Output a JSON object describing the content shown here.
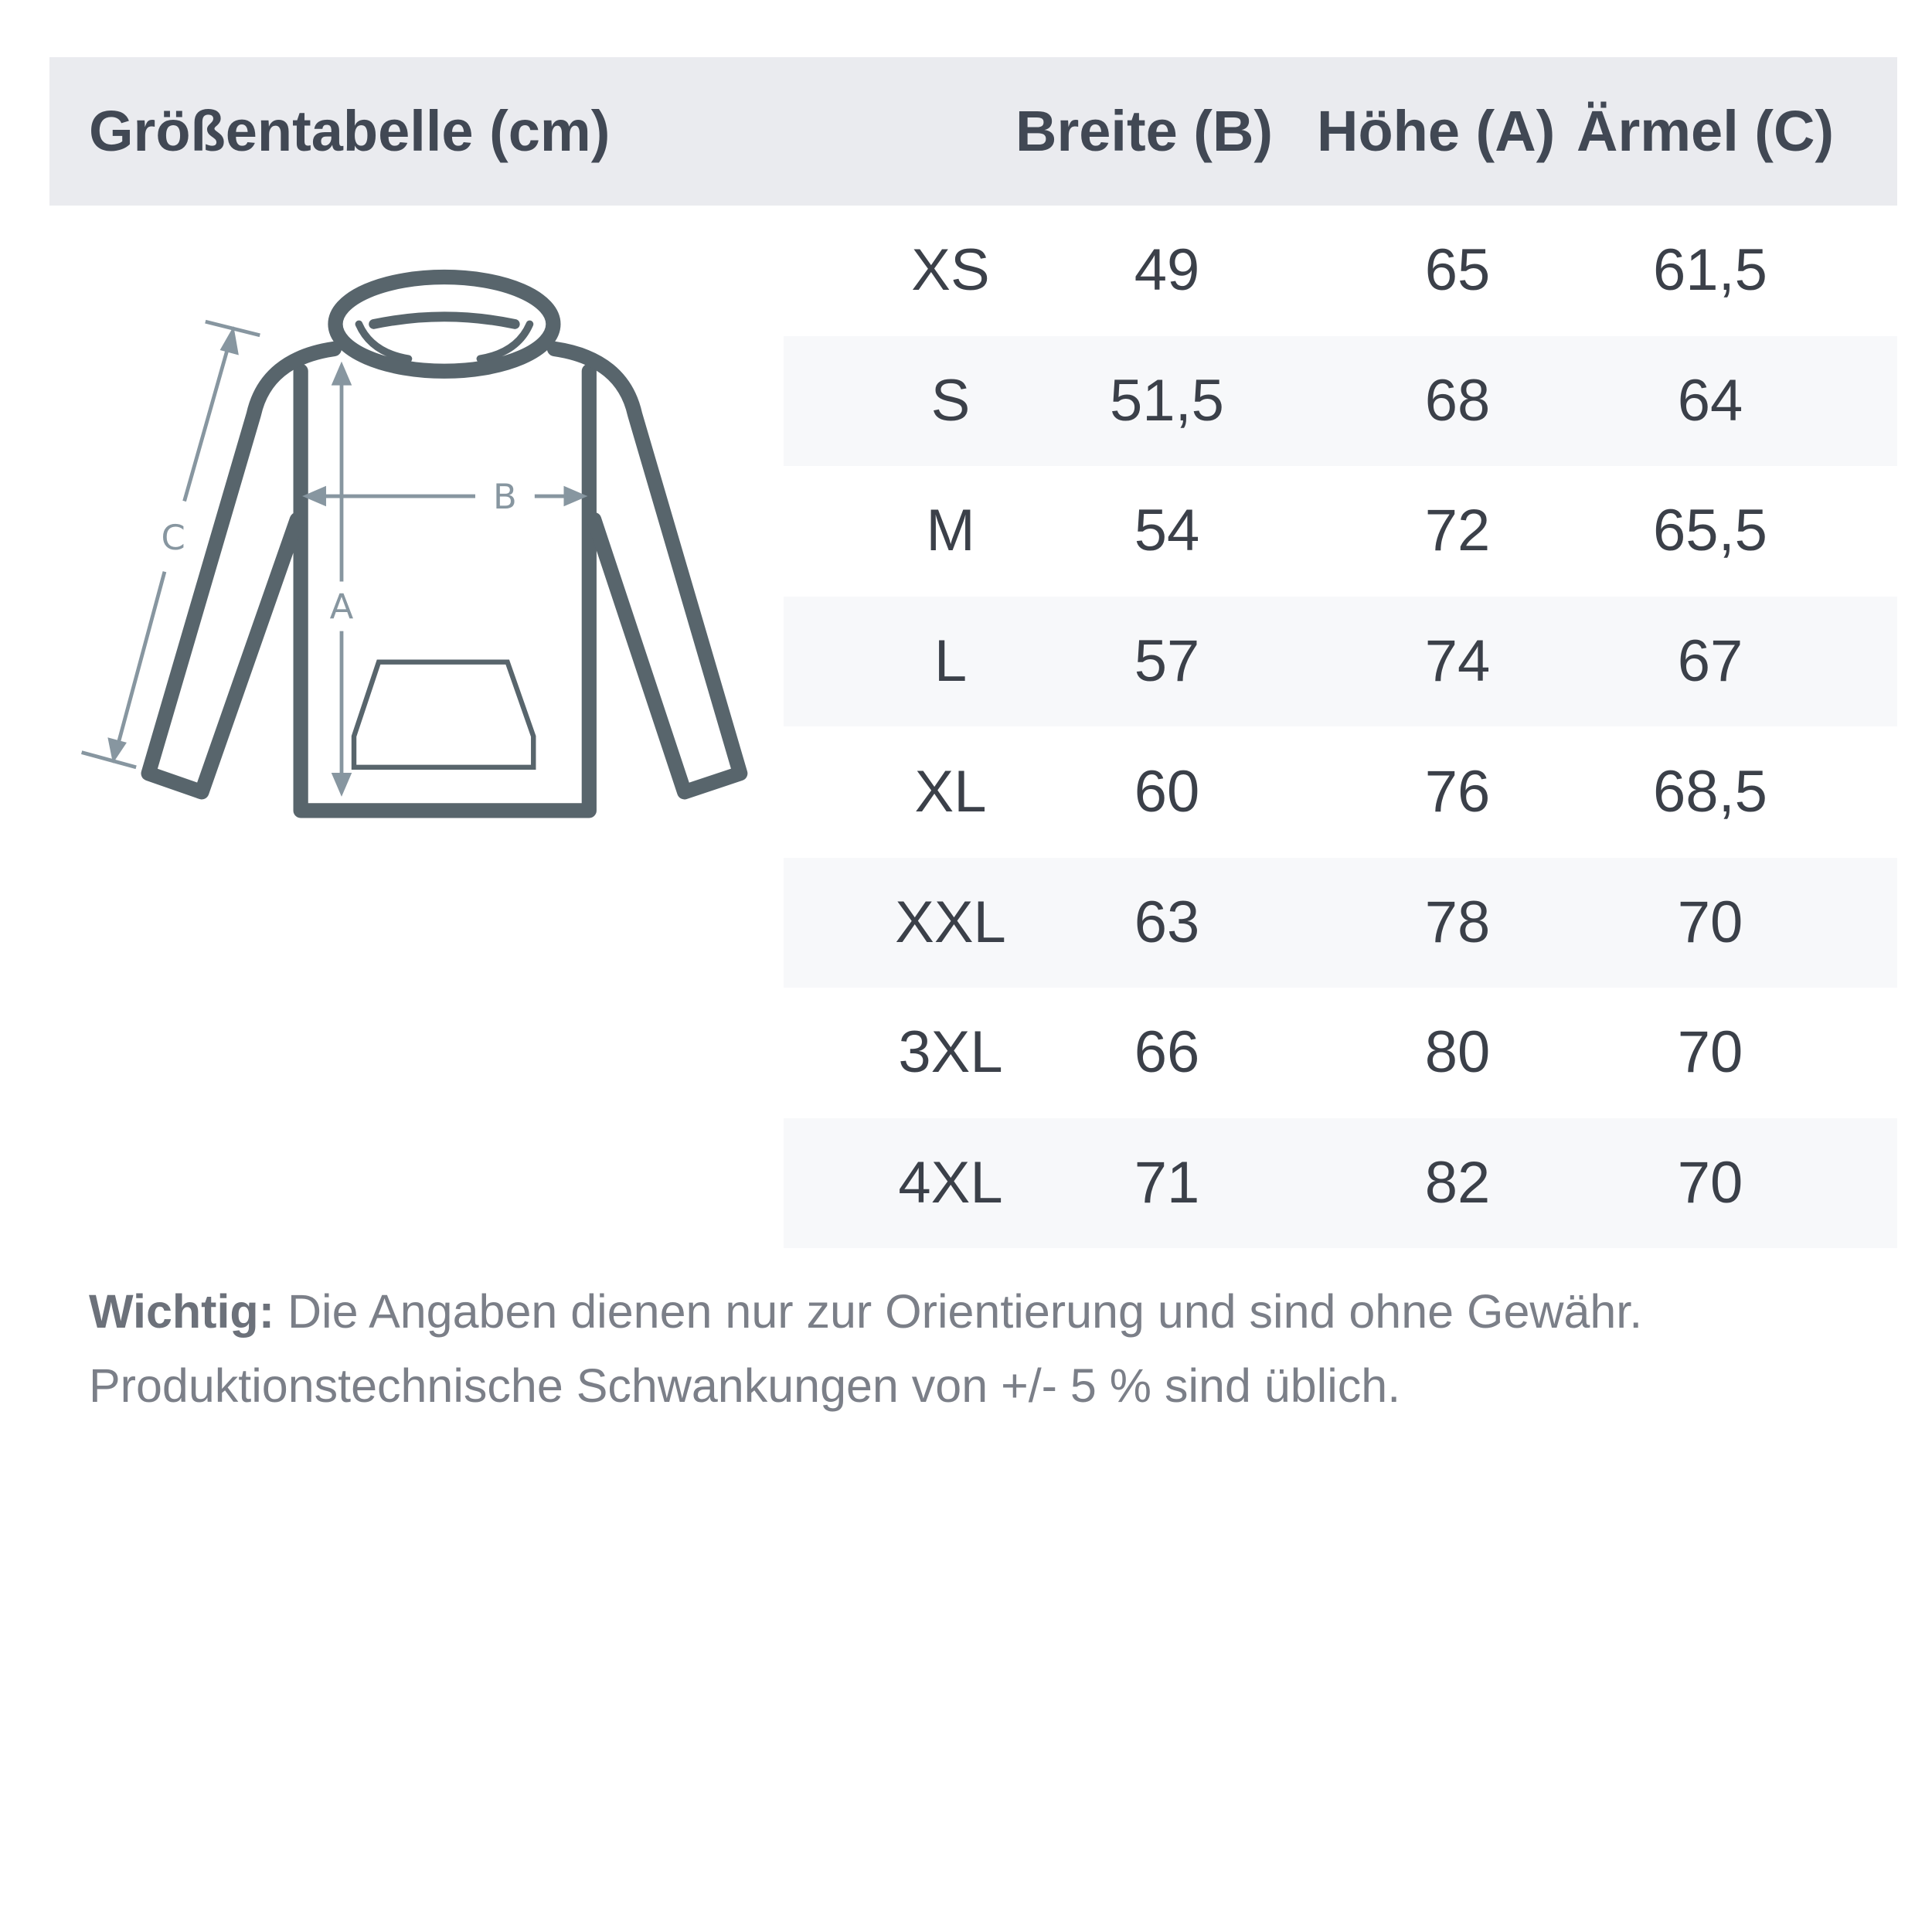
{
  "header": {
    "title": "Größentabelle (cm)",
    "columns": [
      "Breite (B)",
      "Höhe (A)",
      "Ärmel (C)"
    ]
  },
  "diagram": {
    "labels": {
      "a": "A",
      "b": "B",
      "c": "C"
    },
    "outline_color": "#58656c",
    "arrow_color": "#8796a0"
  },
  "rows": [
    {
      "size": "XS",
      "b": "49",
      "a": "65",
      "c": "61,5"
    },
    {
      "size": "S",
      "b": "51,5",
      "a": "68",
      "c": "64"
    },
    {
      "size": "M",
      "b": "54",
      "a": "72",
      "c": "65,5"
    },
    {
      "size": "L",
      "b": "57",
      "a": "74",
      "c": "67"
    },
    {
      "size": "XL",
      "b": "60",
      "a": "76",
      "c": "68,5"
    },
    {
      "size": "XXL",
      "b": "63",
      "a": "78",
      "c": "70"
    },
    {
      "size": "3XL",
      "b": "66",
      "a": "80",
      "c": "70"
    },
    {
      "size": "4XL",
      "b": "71",
      "a": "82",
      "c": "70"
    }
  ],
  "note": {
    "label": "Wichtig:",
    "line1": " Die Angaben dienen nur zur Orientierung und sind ohne Gewähr.",
    "line2": "Produktionstechnische Schwankungen von +/- 5 % sind üblich."
  }
}
